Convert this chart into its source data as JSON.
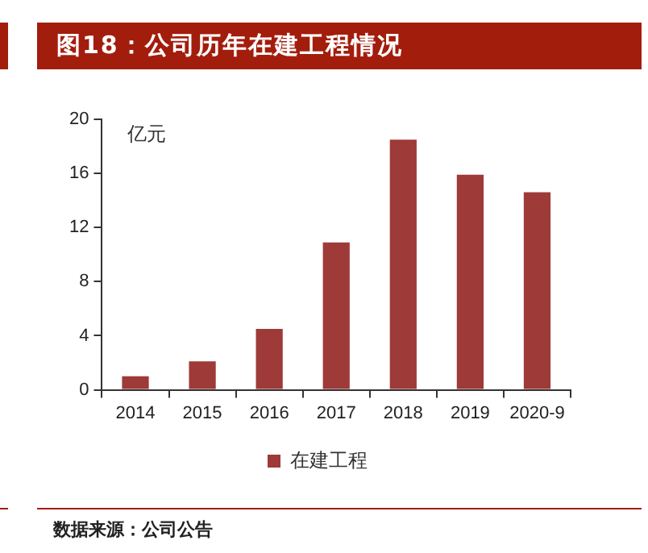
{
  "chart_data": {
    "type": "bar",
    "title": "图18：公司历年在建工程情况",
    "ylabel": "亿元",
    "categories": [
      "2014",
      "2015",
      "2016",
      "2017",
      "2018",
      "2019",
      "2020-9"
    ],
    "series": [
      {
        "name": "在建工程",
        "color": "#9e3a38",
        "values": [
          1.0,
          2.1,
          4.5,
          10.9,
          18.5,
          15.9,
          14.6
        ]
      }
    ],
    "ylim": [
      0,
      20
    ],
    "yticks": [
      0,
      4,
      8,
      12,
      16,
      20
    ],
    "grid": false,
    "legend": "bottom",
    "annotations": [
      "数据来源：公司公告"
    ]
  }
}
